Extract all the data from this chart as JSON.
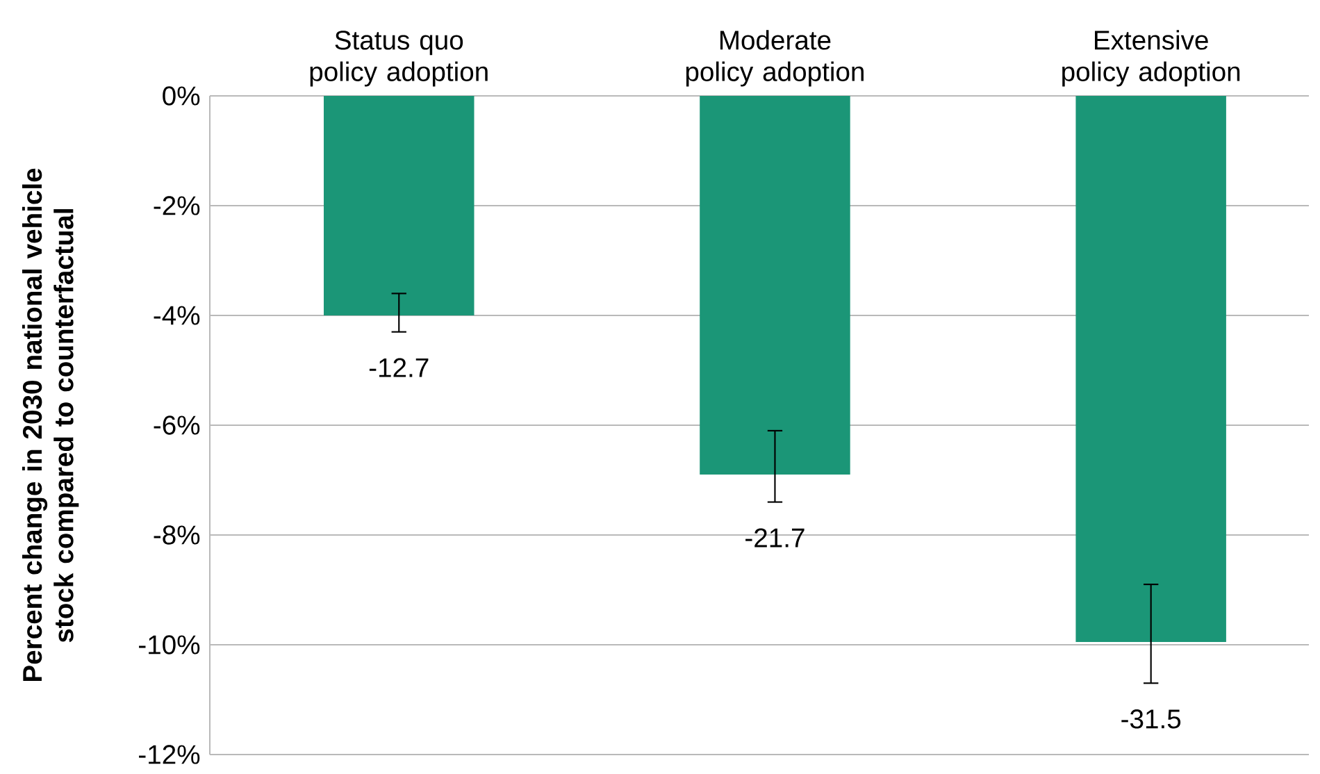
{
  "chart_data": {
    "type": "bar",
    "ylabel": "Percent change in 2030 national vehicle stock compared to counterfactual",
    "categories": [
      "Status quo policy adoption",
      "Moderate policy adoption",
      "Extensive policy adoption"
    ],
    "values": [
      -4.0,
      -6.9,
      -9.95
    ],
    "errors": [
      [
        -4.3,
        -3.6
      ],
      [
        -7.4,
        -6.1
      ],
      [
        -10.7,
        -8.9
      ]
    ],
    "annotations": [
      "-12.7",
      "-21.7",
      "-31.5"
    ],
    "color": "#1b9677",
    "ylim": [
      -12,
      0
    ],
    "yticks": [
      {
        "value": 0,
        "label": "0%"
      },
      {
        "value": -2,
        "label": "-2%"
      },
      {
        "value": -4,
        "label": "-4%"
      },
      {
        "value": -6,
        "label": "-6%"
      },
      {
        "value": -8,
        "label": "-8%"
      },
      {
        "value": -10,
        "label": "-10%"
      },
      {
        "value": -12,
        "label": "-12%"
      }
    ],
    "grid": "y"
  }
}
